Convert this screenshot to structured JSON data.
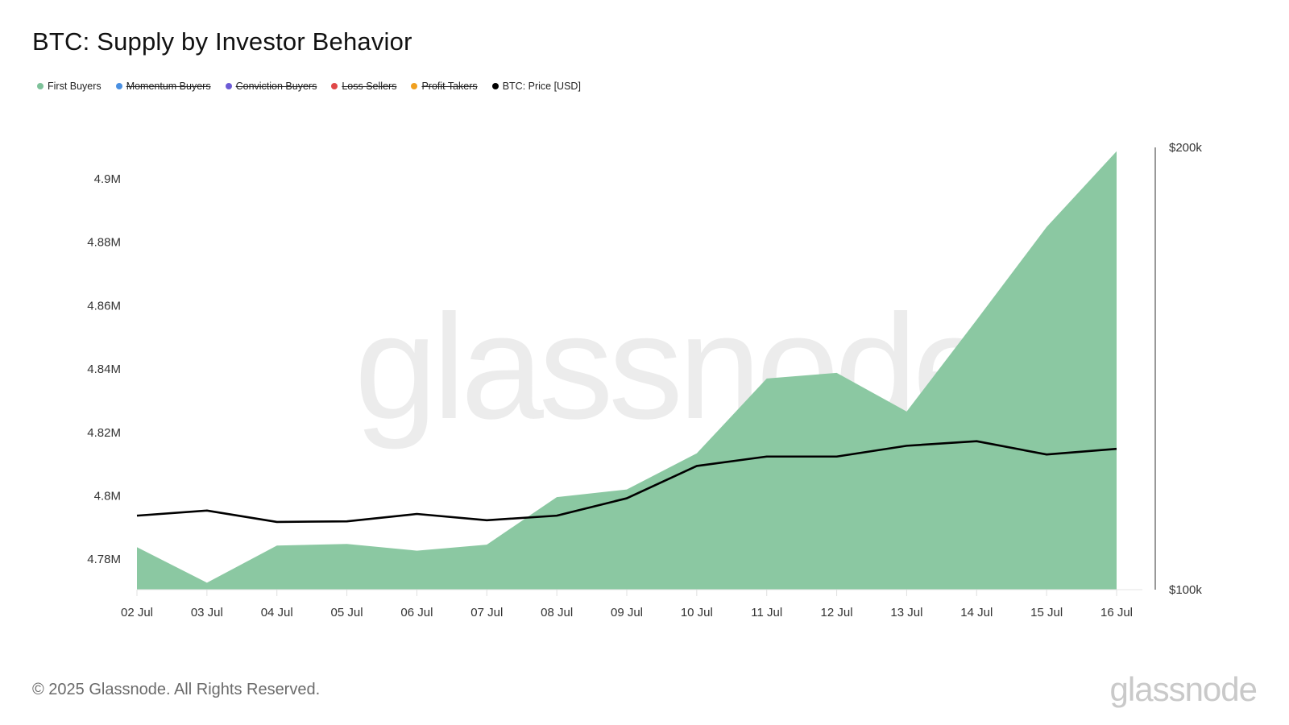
{
  "title": "BTC: Supply by Investor Behavior",
  "legend": [
    {
      "label": "First Buyers",
      "color": "#7ec29a",
      "active": true
    },
    {
      "label": "Momentum Buyers",
      "color": "#4a90e2",
      "active": false
    },
    {
      "label": "Conviction Buyers",
      "color": "#6c5bd6",
      "active": false
    },
    {
      "label": "Loss Sellers",
      "color": "#e04848",
      "active": false
    },
    {
      "label": "Profit Takers",
      "color": "#f0a020",
      "active": false
    },
    {
      "label": "BTC: Price [USD]",
      "color": "#000000",
      "active": true
    }
  ],
  "watermark": "glassnode",
  "footer": {
    "copyright": "© 2025 Glassnode. All Rights Reserved.",
    "logo": "glassnode"
  },
  "chart_data": {
    "type": "area",
    "title": "BTC: Supply by Investor Behavior",
    "categories": [
      "02 Jul",
      "03 Jul",
      "04 Jul",
      "05 Jul",
      "06 Jul",
      "07 Jul",
      "08 Jul",
      "09 Jul",
      "10 Jul",
      "11 Jul",
      "12 Jul",
      "13 Jul",
      "14 Jul",
      "15 Jul",
      "16 Jul"
    ],
    "series": [
      {
        "name": "First Buyers",
        "axis": "left",
        "type": "area",
        "color": "#8bc8a2",
        "values": [
          4.7838,
          4.7726,
          4.7843,
          4.7848,
          4.7827,
          4.7846,
          4.7996,
          4.802,
          4.8134,
          4.837,
          4.8388,
          4.8266,
          4.8555,
          4.8848,
          4.9087
        ]
      },
      {
        "name": "BTC: Price [USD]",
        "axis": "right",
        "type": "line",
        "color": "#000000",
        "values": [
          112300,
          113200,
          111200,
          111300,
          112600,
          111500,
          112300,
          115400,
          121400,
          123200,
          123200,
          125300,
          126200,
          123600,
          124700
        ]
      }
    ],
    "left_axis": {
      "ticks": [
        "4.78M",
        "4.8M",
        "4.82M",
        "4.84M",
        "4.86M",
        "4.88M",
        "4.9M"
      ],
      "tick_values": [
        4.78,
        4.8,
        4.82,
        4.84,
        4.86,
        4.88,
        4.9
      ],
      "range": [
        4.77,
        4.91
      ],
      "scale": "linear"
    },
    "right_axis": {
      "ticks": [
        "$100k",
        "$200k"
      ],
      "tick_values": [
        100000,
        200000
      ],
      "range": [
        100000,
        200000
      ],
      "scale": "log"
    },
    "xlabel": "",
    "ylabel": "",
    "grid": false,
    "legend_position": "top-left"
  }
}
